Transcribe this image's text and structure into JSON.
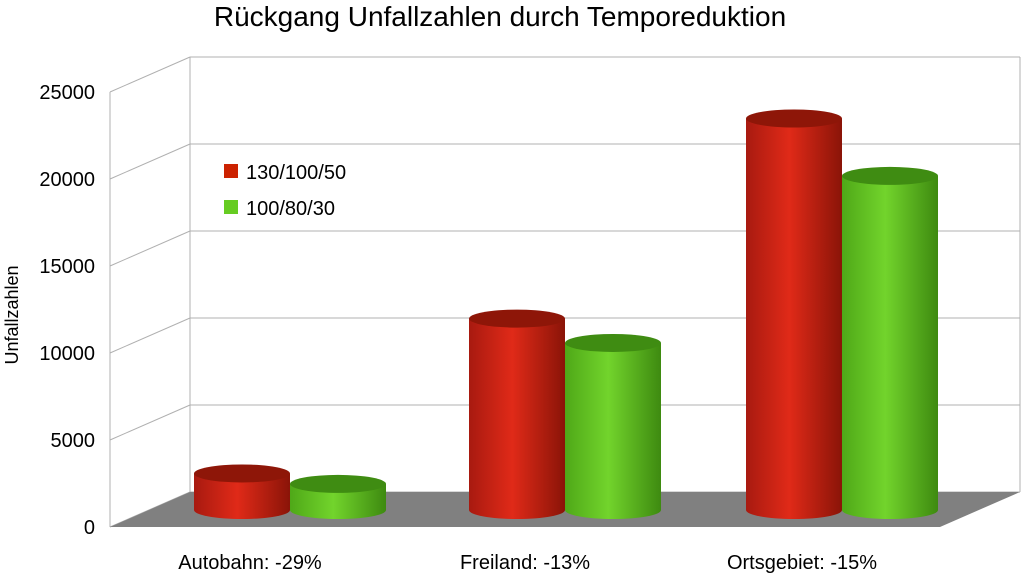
{
  "chart_data": {
    "type": "bar",
    "title": "Rückgang Unfallzahlen durch Temporeduktion",
    "ylabel": "Unfallzahlen",
    "xlabel": "",
    "ylim": [
      0,
      25000
    ],
    "yticks": [
      "0",
      "5000",
      "10000",
      "15000",
      "20000",
      "25000"
    ],
    "categories": [
      "Autobahn: -29%",
      "Freiland: -13%",
      "Ortsgebiet: -15%"
    ],
    "series": [
      {
        "name": "130/100/50",
        "values": [
          2100,
          11000,
          22500
        ],
        "color": "#cc2200"
      },
      {
        "name": "100/80/30",
        "values": [
          1500,
          9600,
          19200
        ],
        "color": "#66cc22"
      }
    ],
    "grid": true,
    "legend": "top-left",
    "style": "3d-cylinder"
  }
}
